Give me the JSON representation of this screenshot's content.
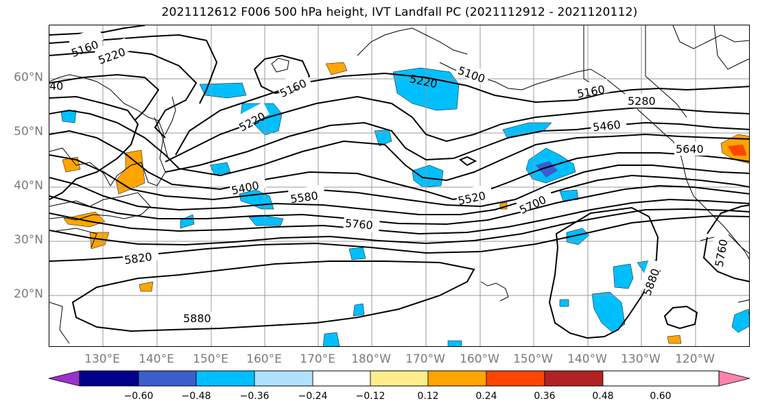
{
  "title": "2021112612 F006 500 hPa height, IVT Landfall PC (2021112912 - 2021120112)",
  "lat_labels": [
    "60°N",
    "50°N",
    "40°N",
    "30°N",
    "20°N"
  ],
  "lon_labels": [
    "130°E",
    "140°E",
    "150°E",
    "160°E",
    "170°E",
    "180°W",
    "170°W",
    "160°W",
    "150°W",
    "140°W",
    "130°W",
    "120°W"
  ],
  "contour_labels": {
    "c5160_nw": "5160",
    "c5220_nw": "5220",
    "c40_left": "40",
    "c5160_mid": "5160",
    "c5220_mid": "5220",
    "c5220_ne": "5220",
    "c5100": "5100",
    "c5160_ne": "5160",
    "c5280": "5280",
    "c5460": "5460",
    "c5640": "5640",
    "c5400": "5400",
    "c5580": "5580",
    "c5520": "5520",
    "c5700": "5700",
    "c5760": "5760",
    "c5820": "5820",
    "c5880_w": "5880",
    "c5880_e": "5880",
    "c5760_e": "5760"
  },
  "colorbar": {
    "colors": [
      "#9932CC",
      "#00008B",
      "#3A5FCD",
      "#00BFFF",
      "#B0E2FF",
      "#FFFFFF",
      "#FFEC8B",
      "#FFA500",
      "#FF4500",
      "#B22222",
      "#FF82AB"
    ],
    "tick_labels": [
      "−0.60",
      "−0.48",
      "−0.36",
      "−0.24",
      "−0.12",
      "0.12",
      "0.24",
      "0.36",
      "0.48",
      "0.60"
    ]
  }
}
